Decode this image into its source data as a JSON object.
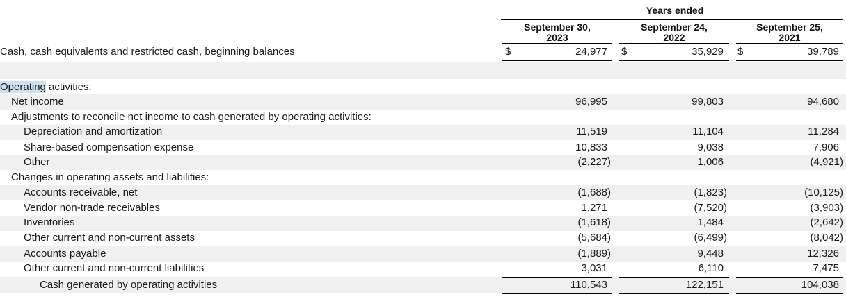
{
  "header": {
    "group_label": "Years ended",
    "columns": [
      {
        "line1": "September 30,",
        "line2": "2023"
      },
      {
        "line1": "September 24,",
        "line2": "2022"
      },
      {
        "line1": "September 25,",
        "line2": "2021"
      }
    ]
  },
  "beginning": {
    "label": "Cash, cash equivalents and restricted cash, beginning balances",
    "currency": "$",
    "values": [
      "24,977",
      "35,929",
      "39,789"
    ]
  },
  "section": {
    "title_highlight": "Operating",
    "title_rest": " activities:"
  },
  "rows": [
    {
      "label": "Net income",
      "values": [
        "96,995",
        "99,803",
        "94,680"
      ]
    },
    {
      "label": "Adjustments to reconcile net income to cash generated by operating activities:",
      "values": [
        "",
        "",
        ""
      ]
    },
    {
      "label": "Depreciation and amortization",
      "values": [
        "11,519",
        "11,104",
        "11,284"
      ]
    },
    {
      "label": "Share-based compensation expense",
      "values": [
        "10,833",
        "9,038",
        "7,906"
      ]
    },
    {
      "label": "Other",
      "values": [
        "(2,227)",
        "1,006",
        "(4,921)"
      ]
    },
    {
      "label": "Changes in operating assets and liabilities:",
      "values": [
        "",
        "",
        ""
      ]
    },
    {
      "label": "Accounts receivable, net",
      "values": [
        "(1,688)",
        "(1,823)",
        "(10,125)"
      ]
    },
    {
      "label": "Vendor non-trade receivables",
      "values": [
        "1,271",
        "(7,520)",
        "(3,903)"
      ]
    },
    {
      "label": "Inventories",
      "values": [
        "(1,618)",
        "1,484",
        "(2,642)"
      ]
    },
    {
      "label": "Other current and non-current assets",
      "values": [
        "(5,684)",
        "(6,499)",
        "(8,042)"
      ]
    },
    {
      "label": "Accounts payable",
      "values": [
        "(1,889)",
        "9,448",
        "12,326"
      ]
    },
    {
      "label": "Other current and non-current liabilities",
      "values": [
        "3,031",
        "6,110",
        "7,475"
      ]
    },
    {
      "label": "Cash generated by operating activities",
      "values": [
        "110,543",
        "122,151",
        "104,038"
      ]
    }
  ]
}
